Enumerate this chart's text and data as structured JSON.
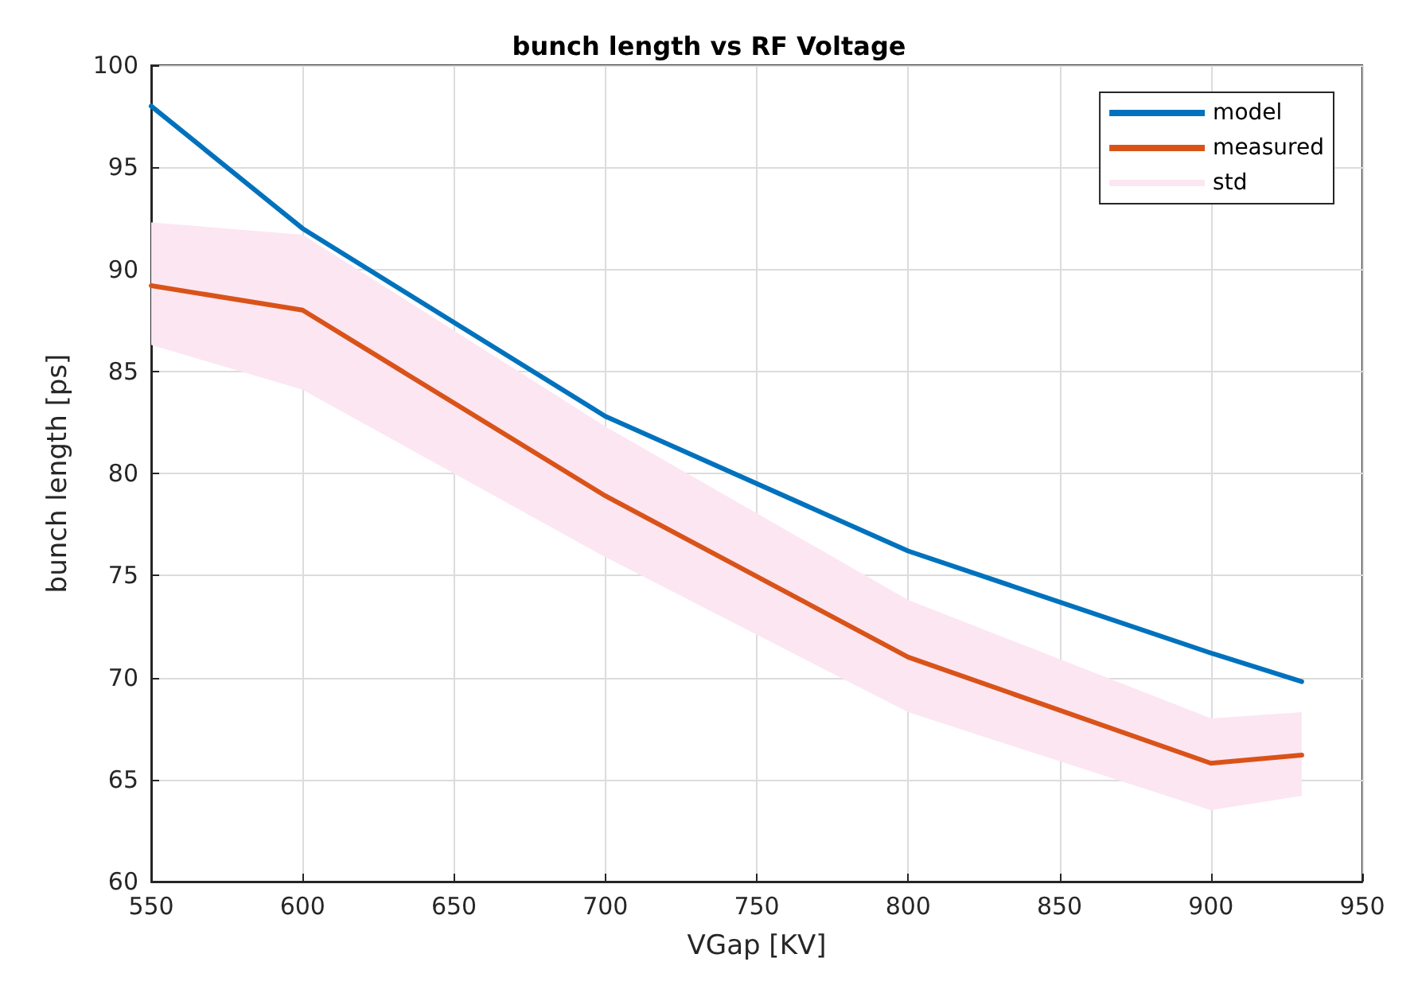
{
  "chart_data": {
    "type": "line",
    "title": "bunch length vs RF Voltage",
    "xlabel": "VGap [KV]",
    "ylabel": "bunch length [ps]",
    "x": [
      550,
      600,
      700,
      800,
      900,
      930
    ],
    "series": [
      {
        "name": "model",
        "color": "#0072bd",
        "values": [
          98.0,
          92.0,
          82.8,
          76.2,
          71.2,
          69.8
        ]
      },
      {
        "name": "measured",
        "color": "#d95319",
        "values": [
          89.2,
          88.0,
          78.9,
          71.0,
          65.8,
          66.2
        ],
        "lower": [
          86.3,
          84.1,
          75.9,
          68.3,
          63.5,
          64.2
        ],
        "upper": [
          92.3,
          91.7,
          82.3,
          73.8,
          68.0,
          68.3
        ]
      },
      {
        "name": "std",
        "type": "area",
        "color": "#fce6f2",
        "values": [
          null,
          null,
          null,
          null,
          null,
          null
        ]
      }
    ],
    "xlim": [
      550,
      950
    ],
    "xticks": [
      550,
      600,
      650,
      700,
      750,
      800,
      850,
      900,
      950
    ],
    "ylim": [
      60,
      100
    ],
    "yticks": [
      60,
      65,
      70,
      75,
      80,
      85,
      90,
      95,
      100
    ],
    "grid": true,
    "legend": "top right",
    "marker": "none",
    "line_style": "solid"
  }
}
